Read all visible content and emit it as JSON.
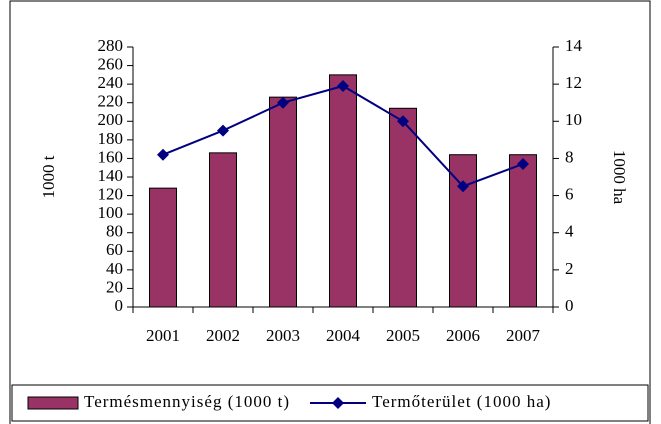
{
  "chart_data": {
    "type": "bar_line",
    "categories": [
      "2001",
      "2002",
      "2003",
      "2004",
      "2005",
      "2006",
      "2007"
    ],
    "series": [
      {
        "name": "Termésmennyiség (1000 t)",
        "color": "#993366",
        "type": "bar",
        "values": [
          128,
          166,
          226,
          250,
          214,
          164,
          164
        ]
      },
      {
        "name": "Termőterület (1000 ha)",
        "color": "#000080",
        "type": "line",
        "axis": "y2",
        "values": [
          8.2,
          9.5,
          11,
          11.9,
          10,
          6.5,
          7.7
        ]
      }
    ],
    "ylabel": "1000 t",
    "y2label": "1000 ha",
    "ylim": [
      0,
      280
    ],
    "yticks": [
      0,
      20,
      40,
      60,
      80,
      100,
      120,
      140,
      160,
      180,
      200,
      220,
      240,
      260,
      280
    ],
    "y2lim": [
      0,
      14
    ],
    "y2ticks": [
      0,
      2,
      4,
      6,
      8,
      10,
      12,
      14
    ],
    "grid": false,
    "legend": "bottom"
  }
}
